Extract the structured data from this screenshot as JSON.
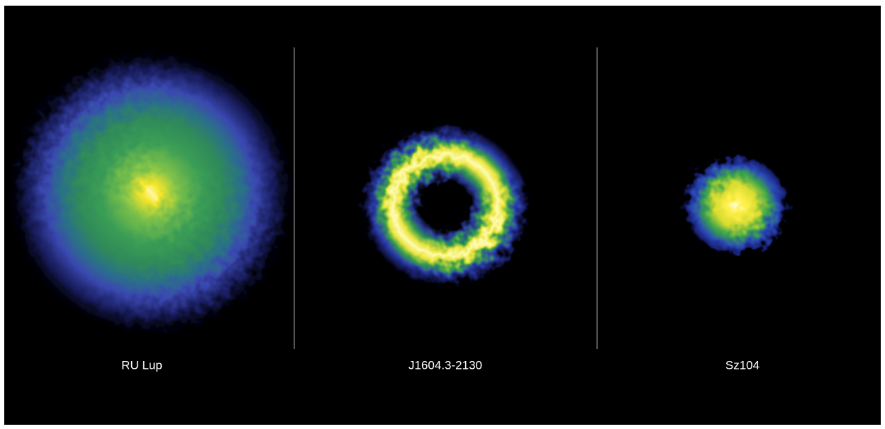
{
  "panels": [
    {
      "label": "RU Lup"
    },
    {
      "label": "J1604.3-2130"
    },
    {
      "label": "Sz104"
    }
  ]
}
